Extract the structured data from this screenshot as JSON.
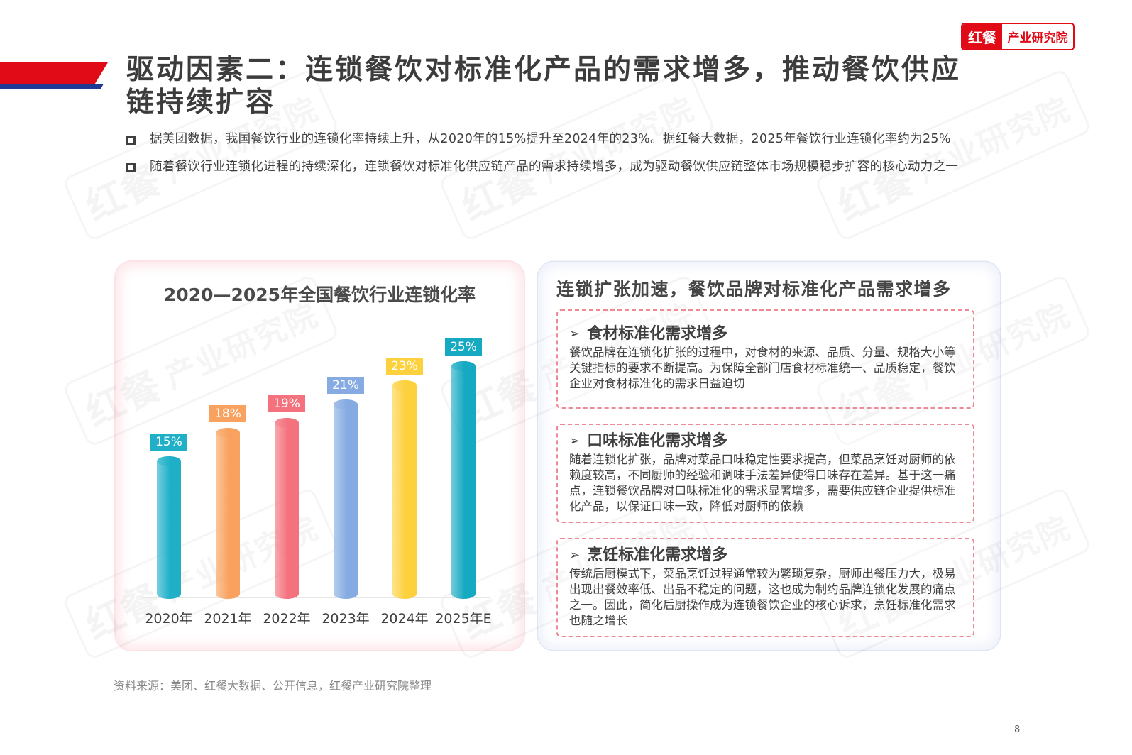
{
  "header": {
    "title": "驱动因素二：连锁餐饮对标准化产品的需求增多，推动餐饮供应链持续扩容",
    "brand_logo": {
      "left": "红餐",
      "right": "产业研究院"
    },
    "ribbon_colors": {
      "red": "#e00b17",
      "blue": "#1f3a93"
    }
  },
  "bullets": [
    {
      "text": "据美团数据，我国餐饮行业的连锁化率持续上升，从2020年的15%提升至2024年的23%。据红餐大数据，2025年餐饮行业连锁化率约为25%"
    },
    {
      "text": "随着餐饮行业连锁化进程的持续深化，连锁餐饮对标准化供应链产品的需求持续增多，成为驱动餐饮供应链整体市场规模稳步扩容的核心动力之一"
    }
  ],
  "chart_data": {
    "type": "bar",
    "title": "2020—2025年全国餐饮行业连锁化率",
    "categories": [
      "2020年",
      "2021年",
      "2022年",
      "2023年",
      "2024年",
      "2025年E"
    ],
    "values": [
      15,
      18,
      19,
      21,
      23,
      25
    ],
    "value_labels": [
      "15%",
      "18%",
      "19%",
      "21%",
      "23%",
      "25%"
    ],
    "unit": "%",
    "colors": [
      "#1fb0c8",
      "#f9a15e",
      "#f4727e",
      "#86abe2",
      "#fdd03d",
      "#16a9c2"
    ],
    "xlabel": "",
    "ylabel": "",
    "grid": false,
    "legend": "none",
    "bar_style": "3d-cylinder"
  },
  "info_card": {
    "title": "连锁扩张加速，餐饮品牌对标准化产品需求增多",
    "sections": [
      {
        "heading": "食材标准化需求增多",
        "body": "餐饮品牌在连锁化扩张的过程中，对食材的来源、品质、分量、规格大小等关键指标的要求不断提高。为保障全部门店食材标准统一、品质稳定，餐饮企业对食材标准化的需求日益迫切"
      },
      {
        "heading": "口味标准化需求增多",
        "body": "随着连锁化扩张，品牌对菜品口味稳定性要求提高，但菜品烹饪对厨师的依赖度较高，不同厨师的经验和调味手法差异使得口味存在差异。基于这一痛点，连锁餐饮品牌对口味标准化的需求显著增多，需要供应链企业提供标准化产品，以保证口味一致，降低对厨师的依赖"
      },
      {
        "heading": "烹饪标准化需求增多",
        "body": "传统后厨模式下，菜品烹饪过程通常较为繁琐复杂，厨师出餐压力大，极易出现出餐效率低、出品不稳定的问题，这也成为制约品牌连锁化发展的痛点之一。因此，简化后厨操作成为连锁餐饮企业的核心诉求，烹饪标准化需求也随之增长"
      }
    ],
    "arrow_glyph": "➢"
  },
  "footer": {
    "source": "资料来源：美团、红餐大数据、公开信息，红餐产业研究院整理",
    "page_number": "8"
  },
  "watermark": {
    "logo": "红餐",
    "text": "产业研究院"
  }
}
